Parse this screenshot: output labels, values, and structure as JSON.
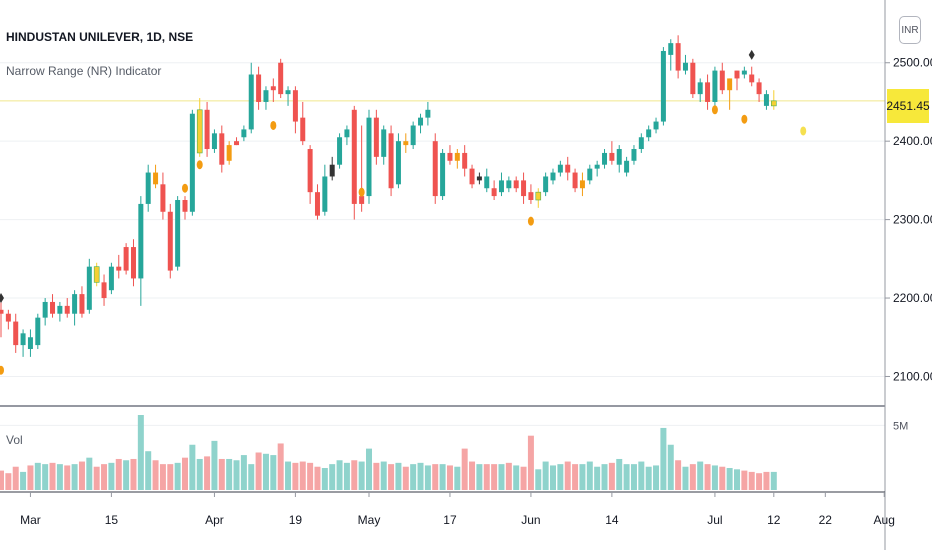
{
  "header": {
    "symbol_title": "HINDUSTAN UNILEVER, 1D, NSE",
    "indicator_name": "Narrow Range (NR) Indicator",
    "volume_label": "Vol",
    "currency": "INR"
  },
  "current_price_label": "2451.45",
  "colors": {
    "up": "#26a69a",
    "down": "#ef5350",
    "nr_up": "#f5d033",
    "nr_down": "#f39c12",
    "dark": "#333333",
    "dot_orange": "#f39c12",
    "dot_yellow": "#f5e050",
    "diamond": "#333333",
    "price_line": "#f0e68c",
    "vol_up": "#8fd3cc",
    "vol_down": "#f5a5a5"
  },
  "chart_data": {
    "type": "candlestick",
    "title": "HINDUSTAN UNILEVER, 1D, NSE",
    "price_axis": {
      "ylim": [
        2070,
        2580
      ],
      "ticks": [
        2100,
        2200,
        2300,
        2400,
        2500
      ],
      "tick_labels": [
        "2100.00",
        "2200.00",
        "2300.00",
        "2400.00",
        "2500.00"
      ]
    },
    "volume_axis": {
      "ylim": [
        0,
        5800000
      ],
      "tick": 5000000,
      "tick_label": "5M"
    },
    "time_axis": {
      "tick_labels": [
        "Mar",
        "15",
        "Apr",
        "19",
        "May",
        "17",
        "Jun",
        "14",
        "Jul",
        "12",
        "22",
        "Aug"
      ],
      "tick_bar_index": [
        4,
        15,
        29,
        40,
        50,
        61,
        72,
        83,
        97,
        105,
        112,
        120
      ]
    },
    "current_price": 2451.45,
    "candles": [
      {
        "o": 2185,
        "h": 2195,
        "l": 2150,
        "c": 2180,
        "v": 1500000,
        "s": "down"
      },
      {
        "o": 2180,
        "h": 2185,
        "l": 2160,
        "c": 2170,
        "v": 1300000,
        "s": "down"
      },
      {
        "o": 2170,
        "h": 2180,
        "l": 2130,
        "c": 2140,
        "v": 1800000,
        "s": "down"
      },
      {
        "o": 2140,
        "h": 2160,
        "l": 2125,
        "c": 2155,
        "v": 1400000,
        "s": "up"
      },
      {
        "o": 2150,
        "h": 2160,
        "l": 2125,
        "c": 2135,
        "v": 1900000,
        "s": "up"
      },
      {
        "o": 2140,
        "h": 2180,
        "l": 2135,
        "c": 2175,
        "v": 2100000,
        "s": "up"
      },
      {
        "o": 2175,
        "h": 2200,
        "l": 2165,
        "c": 2195,
        "v": 2000000,
        "s": "up"
      },
      {
        "o": 2195,
        "h": 2205,
        "l": 2175,
        "c": 2180,
        "v": 2100000,
        "s": "down"
      },
      {
        "o": 2180,
        "h": 2195,
        "l": 2170,
        "c": 2190,
        "v": 2000000,
        "s": "up"
      },
      {
        "o": 2190,
        "h": 2200,
        "l": 2175,
        "c": 2180,
        "v": 1900000,
        "s": "down"
      },
      {
        "o": 2180,
        "h": 2210,
        "l": 2165,
        "c": 2205,
        "v": 2000000,
        "s": "up"
      },
      {
        "o": 2205,
        "h": 2215,
        "l": 2175,
        "c": 2180,
        "v": 2200000,
        "s": "down"
      },
      {
        "o": 2185,
        "h": 2250,
        "l": 2180,
        "c": 2240,
        "v": 2500000,
        "s": "up"
      },
      {
        "o": 2240,
        "h": 2245,
        "l": 2215,
        "c": 2220,
        "v": 1800000,
        "s": "nr_up"
      },
      {
        "o": 2220,
        "h": 2230,
        "l": 2190,
        "c": 2200,
        "v": 2000000,
        "s": "down"
      },
      {
        "o": 2210,
        "h": 2245,
        "l": 2205,
        "c": 2240,
        "v": 2100000,
        "s": "up"
      },
      {
        "o": 2240,
        "h": 2255,
        "l": 2225,
        "c": 2235,
        "v": 2400000,
        "s": "down"
      },
      {
        "o": 2235,
        "h": 2270,
        "l": 2230,
        "c": 2265,
        "v": 2300000,
        "s": "down"
      },
      {
        "o": 2265,
        "h": 2275,
        "l": 2215,
        "c": 2225,
        "v": 2400000,
        "s": "down"
      },
      {
        "o": 2225,
        "h": 2330,
        "l": 2190,
        "c": 2320,
        "v": 5800000,
        "s": "up"
      },
      {
        "o": 2320,
        "h": 2370,
        "l": 2310,
        "c": 2360,
        "v": 3000000,
        "s": "up"
      },
      {
        "o": 2360,
        "h": 2370,
        "l": 2340,
        "c": 2345,
        "v": 2300000,
        "s": "nr_down"
      },
      {
        "o": 2345,
        "h": 2360,
        "l": 2300,
        "c": 2310,
        "v": 2000000,
        "s": "down"
      },
      {
        "o": 2310,
        "h": 2320,
        "l": 2225,
        "c": 2235,
        "v": 2000000,
        "s": "down"
      },
      {
        "o": 2240,
        "h": 2330,
        "l": 2235,
        "c": 2325,
        "v": 2100000,
        "s": "up"
      },
      {
        "o": 2325,
        "h": 2330,
        "l": 2300,
        "c": 2310,
        "v": 2500000,
        "s": "down"
      },
      {
        "o": 2310,
        "h": 2440,
        "l": 2305,
        "c": 2435,
        "v": 3500000,
        "s": "up"
      },
      {
        "o": 2385,
        "h": 2455,
        "l": 2380,
        "c": 2440,
        "v": 2400000,
        "s": "nr_up"
      },
      {
        "o": 2440,
        "h": 2450,
        "l": 2380,
        "c": 2390,
        "v": 2600000,
        "s": "down"
      },
      {
        "o": 2390,
        "h": 2415,
        "l": 2385,
        "c": 2410,
        "v": 3800000,
        "s": "up"
      },
      {
        "o": 2410,
        "h": 2420,
        "l": 2360,
        "c": 2370,
        "v": 2400000,
        "s": "down"
      },
      {
        "o": 2375,
        "h": 2400,
        "l": 2370,
        "c": 2395,
        "v": 2400000,
        "s": "nr_down"
      },
      {
        "o": 2395,
        "h": 2405,
        "l": 2395,
        "c": 2400,
        "v": 2300000,
        "s": "down"
      },
      {
        "o": 2405,
        "h": 2420,
        "l": 2400,
        "c": 2415,
        "v": 2700000,
        "s": "up"
      },
      {
        "o": 2415,
        "h": 2500,
        "l": 2410,
        "c": 2485,
        "v": 2000000,
        "s": "up"
      },
      {
        "o": 2485,
        "h": 2495,
        "l": 2440,
        "c": 2450,
        "v": 2900000,
        "s": "down"
      },
      {
        "o": 2450,
        "h": 2470,
        "l": 2440,
        "c": 2465,
        "v": 2800000,
        "s": "up"
      },
      {
        "o": 2465,
        "h": 2480,
        "l": 2450,
        "c": 2470,
        "v": 2700000,
        "s": "down"
      },
      {
        "o": 2500,
        "h": 2505,
        "l": 2455,
        "c": 2460,
        "v": 3600000,
        "s": "down"
      },
      {
        "o": 2460,
        "h": 2470,
        "l": 2445,
        "c": 2465,
        "v": 2200000,
        "s": "up"
      },
      {
        "o": 2465,
        "h": 2470,
        "l": 2410,
        "c": 2425,
        "v": 2100000,
        "s": "down"
      },
      {
        "o": 2430,
        "h": 2450,
        "l": 2395,
        "c": 2400,
        "v": 2200000,
        "s": "down"
      },
      {
        "o": 2390,
        "h": 2395,
        "l": 2320,
        "c": 2335,
        "v": 2100000,
        "s": "down"
      },
      {
        "o": 2335,
        "h": 2345,
        "l": 2300,
        "c": 2305,
        "v": 1800000,
        "s": "down"
      },
      {
        "o": 2310,
        "h": 2370,
        "l": 2305,
        "c": 2355,
        "v": 1700000,
        "s": "up"
      },
      {
        "o": 2355,
        "h": 2380,
        "l": 2350,
        "c": 2370,
        "v": 2000000,
        "s": "dark"
      },
      {
        "o": 2370,
        "h": 2410,
        "l": 2365,
        "c": 2405,
        "v": 2300000,
        "s": "up"
      },
      {
        "o": 2405,
        "h": 2420,
        "l": 2395,
        "c": 2415,
        "v": 2100000,
        "s": "up"
      },
      {
        "o": 2440,
        "h": 2445,
        "l": 2300,
        "c": 2320,
        "v": 2300000,
        "s": "down"
      },
      {
        "o": 2320,
        "h": 2420,
        "l": 2310,
        "c": 2330,
        "v": 2200000,
        "s": "down"
      },
      {
        "o": 2330,
        "h": 2440,
        "l": 2320,
        "c": 2430,
        "v": 3200000,
        "s": "up"
      },
      {
        "o": 2430,
        "h": 2440,
        "l": 2370,
        "c": 2380,
        "v": 2100000,
        "s": "down"
      },
      {
        "o": 2380,
        "h": 2420,
        "l": 2370,
        "c": 2415,
        "v": 2200000,
        "s": "up"
      },
      {
        "o": 2410,
        "h": 2420,
        "l": 2330,
        "c": 2340,
        "v": 2000000,
        "s": "down"
      },
      {
        "o": 2345,
        "h": 2410,
        "l": 2340,
        "c": 2400,
        "v": 2100000,
        "s": "up"
      },
      {
        "o": 2400,
        "h": 2410,
        "l": 2385,
        "c": 2395,
        "v": 1800000,
        "s": "nr_down"
      },
      {
        "o": 2395,
        "h": 2425,
        "l": 2390,
        "c": 2420,
        "v": 2000000,
        "s": "up"
      },
      {
        "o": 2420,
        "h": 2435,
        "l": 2410,
        "c": 2430,
        "v": 2100000,
        "s": "up"
      },
      {
        "o": 2430,
        "h": 2450,
        "l": 2420,
        "c": 2440,
        "v": 1900000,
        "s": "up"
      },
      {
        "o": 2400,
        "h": 2410,
        "l": 2320,
        "c": 2330,
        "v": 2000000,
        "s": "down"
      },
      {
        "o": 2330,
        "h": 2390,
        "l": 2325,
        "c": 2385,
        "v": 2000000,
        "s": "up"
      },
      {
        "o": 2385,
        "h": 2395,
        "l": 2370,
        "c": 2375,
        "v": 1900000,
        "s": "down"
      },
      {
        "o": 2375,
        "h": 2390,
        "l": 2365,
        "c": 2385,
        "v": 1800000,
        "s": "nr_down"
      },
      {
        "o": 2385,
        "h": 2395,
        "l": 2355,
        "c": 2365,
        "v": 3200000,
        "s": "down"
      },
      {
        "o": 2365,
        "h": 2370,
        "l": 2340,
        "c": 2345,
        "v": 2200000,
        "s": "down"
      },
      {
        "o": 2350,
        "h": 2360,
        "l": 2345,
        "c": 2355,
        "v": 2000000,
        "s": "dark"
      },
      {
        "o": 2355,
        "h": 2365,
        "l": 2335,
        "c": 2340,
        "v": 2000000,
        "s": "up"
      },
      {
        "o": 2340,
        "h": 2350,
        "l": 2325,
        "c": 2330,
        "v": 2000000,
        "s": "down"
      },
      {
        "o": 2335,
        "h": 2360,
        "l": 2330,
        "c": 2350,
        "v": 2000000,
        "s": "up"
      },
      {
        "o": 2350,
        "h": 2355,
        "l": 2335,
        "c": 2340,
        "v": 2100000,
        "s": "up"
      },
      {
        "o": 2340,
        "h": 2355,
        "l": 2335,
        "c": 2350,
        "v": 1900000,
        "s": "down"
      },
      {
        "o": 2350,
        "h": 2360,
        "l": 2320,
        "c": 2330,
        "v": 1800000,
        "s": "down"
      },
      {
        "o": 2335,
        "h": 2345,
        "l": 2320,
        "c": 2325,
        "v": 4200000,
        "s": "down"
      },
      {
        "o": 2325,
        "h": 2340,
        "l": 2315,
        "c": 2335,
        "v": 1600000,
        "s": "nr_up"
      },
      {
        "o": 2335,
        "h": 2360,
        "l": 2330,
        "c": 2355,
        "v": 2200000,
        "s": "up"
      },
      {
        "o": 2350,
        "h": 2365,
        "l": 2345,
        "c": 2360,
        "v": 1900000,
        "s": "up"
      },
      {
        "o": 2360,
        "h": 2375,
        "l": 2355,
        "c": 2370,
        "v": 2000000,
        "s": "up"
      },
      {
        "o": 2370,
        "h": 2380,
        "l": 2350,
        "c": 2360,
        "v": 2200000,
        "s": "down"
      },
      {
        "o": 2360,
        "h": 2365,
        "l": 2335,
        "c": 2340,
        "v": 2000000,
        "s": "down"
      },
      {
        "o": 2340,
        "h": 2360,
        "l": 2330,
        "c": 2350,
        "v": 2000000,
        "s": "nr_down"
      },
      {
        "o": 2350,
        "h": 2370,
        "l": 2345,
        "c": 2365,
        "v": 2200000,
        "s": "up"
      },
      {
        "o": 2365,
        "h": 2375,
        "l": 2355,
        "c": 2370,
        "v": 1800000,
        "s": "up"
      },
      {
        "o": 2370,
        "h": 2390,
        "l": 2365,
        "c": 2385,
        "v": 2000000,
        "s": "up"
      },
      {
        "o": 2385,
        "h": 2400,
        "l": 2370,
        "c": 2375,
        "v": 2100000,
        "s": "down"
      },
      {
        "o": 2370,
        "h": 2395,
        "l": 2360,
        "c": 2390,
        "v": 2400000,
        "s": "up"
      },
      {
        "o": 2360,
        "h": 2380,
        "l": 2355,
        "c": 2375,
        "v": 2000000,
        "s": "up"
      },
      {
        "o": 2375,
        "h": 2395,
        "l": 2370,
        "c": 2390,
        "v": 2000000,
        "s": "up"
      },
      {
        "o": 2390,
        "h": 2410,
        "l": 2385,
        "c": 2405,
        "v": 2200000,
        "s": "up"
      },
      {
        "o": 2405,
        "h": 2420,
        "l": 2400,
        "c": 2415,
        "v": 1800000,
        "s": "up"
      },
      {
        "o": 2415,
        "h": 2430,
        "l": 2410,
        "c": 2425,
        "v": 1900000,
        "s": "up"
      },
      {
        "o": 2425,
        "h": 2520,
        "l": 2420,
        "c": 2515,
        "v": 4800000,
        "s": "up"
      },
      {
        "o": 2510,
        "h": 2530,
        "l": 2490,
        "c": 2525,
        "v": 3500000,
        "s": "up"
      },
      {
        "o": 2525,
        "h": 2535,
        "l": 2480,
        "c": 2490,
        "v": 2300000,
        "s": "down"
      },
      {
        "o": 2490,
        "h": 2510,
        "l": 2485,
        "c": 2500,
        "v": 1800000,
        "s": "up"
      },
      {
        "o": 2500,
        "h": 2505,
        "l": 2455,
        "c": 2460,
        "v": 2000000,
        "s": "down"
      },
      {
        "o": 2460,
        "h": 2480,
        "l": 2450,
        "c": 2475,
        "v": 2200000,
        "s": "up"
      },
      {
        "o": 2475,
        "h": 2485,
        "l": 2440,
        "c": 2450,
        "v": 2000000,
        "s": "down"
      },
      {
        "o": 2450,
        "h": 2495,
        "l": 2445,
        "c": 2490,
        "v": 1900000,
        "s": "up"
      },
      {
        "o": 2490,
        "h": 2500,
        "l": 2460,
        "c": 2465,
        "v": 1800000,
        "s": "down"
      },
      {
        "o": 2465,
        "h": 2480,
        "l": 2440,
        "c": 2480,
        "v": 1700000,
        "s": "nr_down"
      },
      {
        "o": 2480,
        "h": 2490,
        "l": 2465,
        "c": 2490,
        "v": 1600000,
        "s": "down"
      },
      {
        "o": 2490,
        "h": 2495,
        "l": 2480,
        "c": 2485,
        "v": 1500000,
        "s": "up"
      },
      {
        "o": 2485,
        "h": 2495,
        "l": 2470,
        "c": 2475,
        "v": 1400000,
        "s": "down"
      },
      {
        "o": 2475,
        "h": 2480,
        "l": 2450,
        "c": 2460,
        "v": 1300000,
        "s": "down"
      },
      {
        "o": 2460,
        "h": 2465,
        "l": 2440,
        "c": 2445,
        "v": 1400000,
        "s": "up"
      },
      {
        "o": 2445,
        "h": 2465,
        "l": 2440,
        "c": 2451.45,
        "v": 1400000,
        "s": "nr_up"
      }
    ],
    "markers": [
      {
        "i": 0,
        "kind": "dot_orange",
        "price": 2108
      },
      {
        "i": 0,
        "kind": "diamond",
        "price": 2200
      },
      {
        "i": 25,
        "kind": "dot_orange",
        "price": 2340
      },
      {
        "i": 27,
        "kind": "dot_orange",
        "price": 2370
      },
      {
        "i": 37,
        "kind": "dot_orange",
        "price": 2420
      },
      {
        "i": 49,
        "kind": "dot_orange",
        "price": 2335
      },
      {
        "i": 72,
        "kind": "dot_orange",
        "price": 2298
      },
      {
        "i": 97,
        "kind": "dot_orange",
        "price": 2440
      },
      {
        "i": 101,
        "kind": "dot_orange",
        "price": 2428
      },
      {
        "i": 102,
        "kind": "diamond",
        "price": 2510
      },
      {
        "i": 109,
        "kind": "dot_yellow",
        "price": 2413
      }
    ]
  }
}
